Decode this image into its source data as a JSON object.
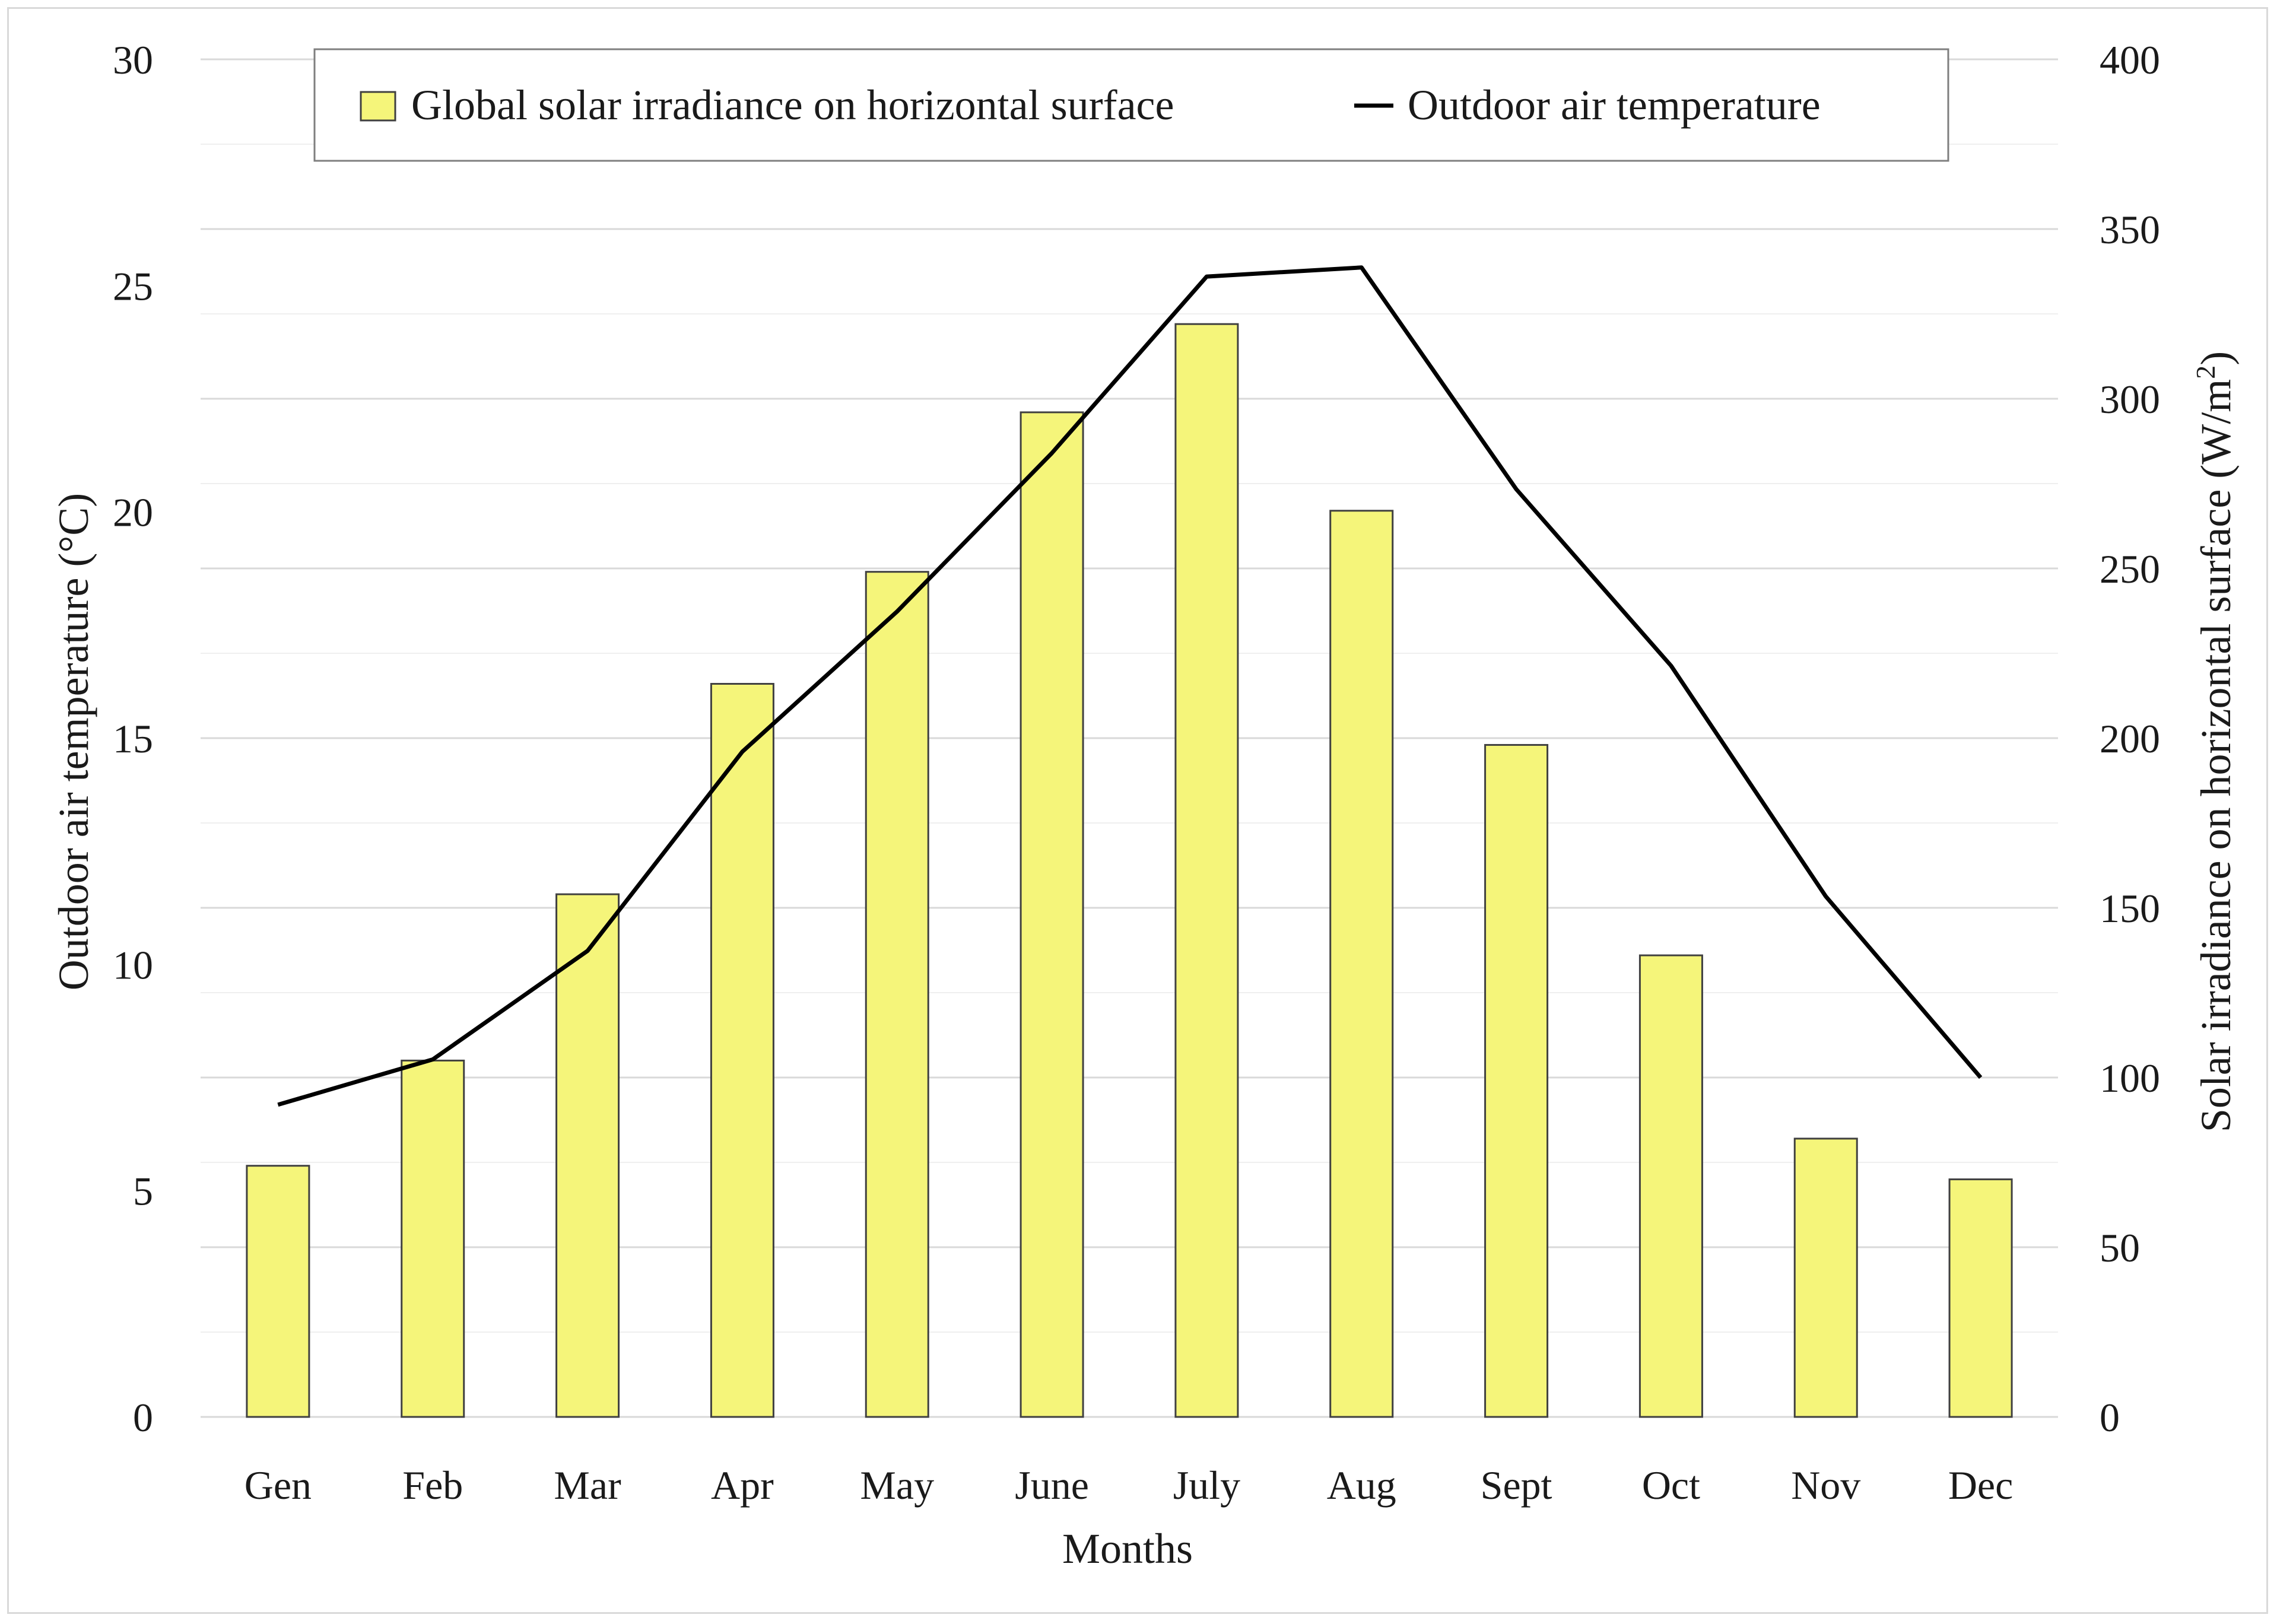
{
  "chart_data": {
    "type": "bar+line",
    "categories": [
      "Gen",
      "Feb",
      "Mar",
      "Apr",
      "May",
      "June",
      "July",
      "Aug",
      "Sept",
      "Oct",
      "Nov",
      "Dec"
    ],
    "series": [
      {
        "name": "Global solar irradiance on horizontal surface",
        "type": "bar",
        "axis": "right",
        "color": "#f5f57a",
        "values": [
          74,
          105,
          154,
          216,
          249,
          296,
          322,
          267,
          198,
          136,
          82,
          70
        ]
      },
      {
        "name": "Outdoor air temperature",
        "type": "line",
        "axis": "left",
        "color": "#000000",
        "values": [
          6.9,
          7.9,
          10.3,
          14.7,
          17.8,
          21.3,
          25.2,
          25.4,
          20.5,
          16.6,
          11.5,
          7.5
        ]
      }
    ],
    "xlabel": "Months",
    "ylabel_left": "Outdoor air temperature (°C)",
    "ylabel_right_prefix": "Solar irradiance on horizontal surface (W/m",
    "ylabel_right_sup": "2",
    "ylabel_right_suffix": ")",
    "ylim_left": [
      0,
      30
    ],
    "ylim_right": [
      0,
      400
    ],
    "yticks_left": [
      "0",
      "5",
      "10",
      "15",
      "20",
      "25",
      "30"
    ],
    "yticks_right": [
      "0",
      "50",
      "100",
      "150",
      "200",
      "250",
      "300",
      "350",
      "400"
    ],
    "grid": true,
    "legend_position": "top-center"
  }
}
